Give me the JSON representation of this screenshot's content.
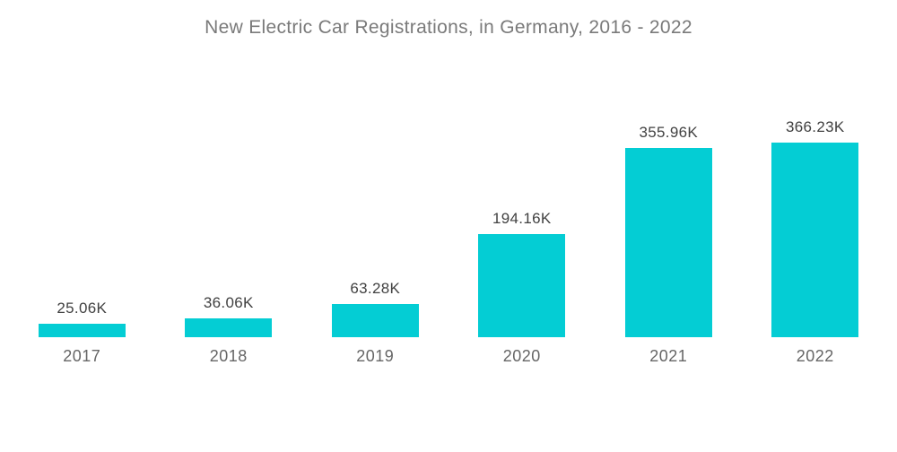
{
  "title": "New Electric Car Registrations, in Germany, 2016 - 2022",
  "colors": {
    "bar": "#04CDD4",
    "title_text": "#7a7a7a",
    "value_label_text": "#414141",
    "axis_label_text": "#666666",
    "background": "#ffffff"
  },
  "chart_data": {
    "type": "bar",
    "title": "New Electric Car Registrations, in Germany, 2016 - 2022",
    "categories": [
      "2017",
      "2018",
      "2019",
      "2020",
      "2021",
      "2022"
    ],
    "values": [
      25.06,
      36.06,
      63.28,
      194.16,
      355.96,
      366.23
    ],
    "value_labels": [
      "25.06K",
      "36.06K",
      "63.28K",
      "194.16K",
      "355.96K",
      "366.23K"
    ],
    "unit": "K",
    "xlabel": "",
    "ylabel": "",
    "ylim": [
      0,
      400
    ],
    "grid": false,
    "legend": false,
    "axes_visible": false,
    "bar_color": "#04CDD4",
    "orientation": "vertical"
  }
}
